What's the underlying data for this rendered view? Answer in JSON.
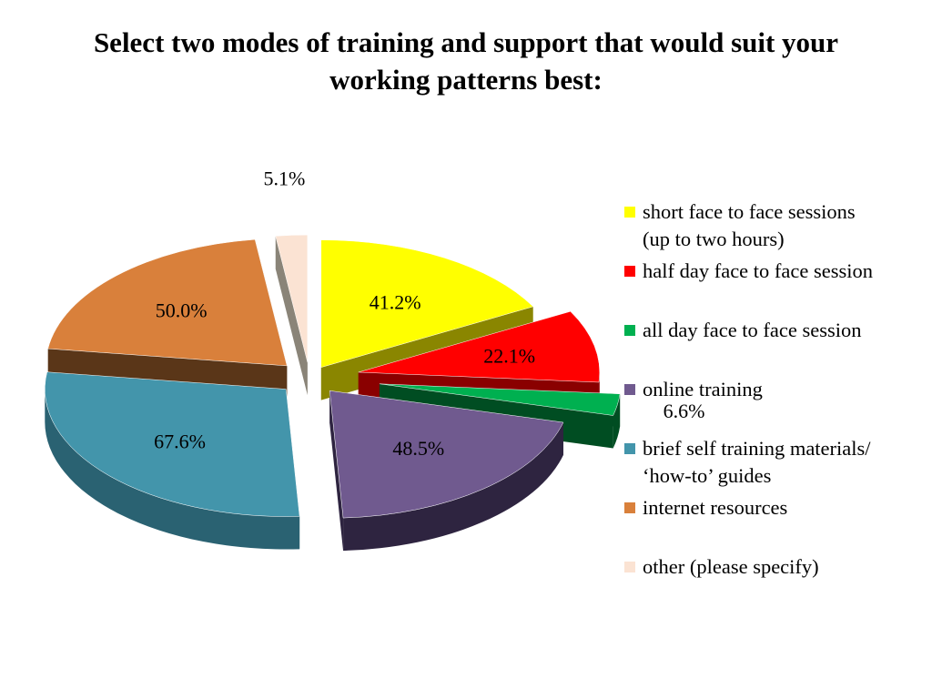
{
  "title": {
    "line1": "Select two modes of training and support that would suit your",
    "line2": "working patterns best:"
  },
  "chart_data": {
    "type": "pie",
    "style": "3d-exploded",
    "title": "Select two modes of training and support that would suit your working patterns best:",
    "legend_position": "right",
    "slices": [
      {
        "label_lines": [
          "short face to face sessions",
          "(up to two hours)"
        ],
        "value": 41.2,
        "display": "41.2%",
        "color": "#ffff00",
        "side_color": "#8a8600"
      },
      {
        "label_lines": [
          "half day face to face session"
        ],
        "value": 22.1,
        "display": "22.1%",
        "color": "#ff0000",
        "side_color": "#8a0000"
      },
      {
        "label_lines": [
          "all day face to face session"
        ],
        "value": 6.6,
        "display": "6.6%",
        "color": "#00b050",
        "side_color": "#004d22"
      },
      {
        "label_lines": [
          "online training"
        ],
        "value": 48.5,
        "display": "48.5%",
        "color": "#705a8f",
        "side_color": "#2e2440"
      },
      {
        "label_lines": [
          "brief self training materials/",
          "‘how-to’ guides"
        ],
        "value": 67.6,
        "display": "67.6%",
        "color": "#4395ab",
        "side_color": "#2a6272"
      },
      {
        "label_lines": [
          "internet resources"
        ],
        "value": 50.0,
        "display": "50.0%",
        "color": "#d9803b",
        "side_color": "#5a3618"
      },
      {
        "label_lines": [
          "other (please specify)"
        ],
        "value": 5.1,
        "display": "5.1%",
        "color": "#fbe3d3",
        "side_color": "#8a8478"
      }
    ]
  }
}
